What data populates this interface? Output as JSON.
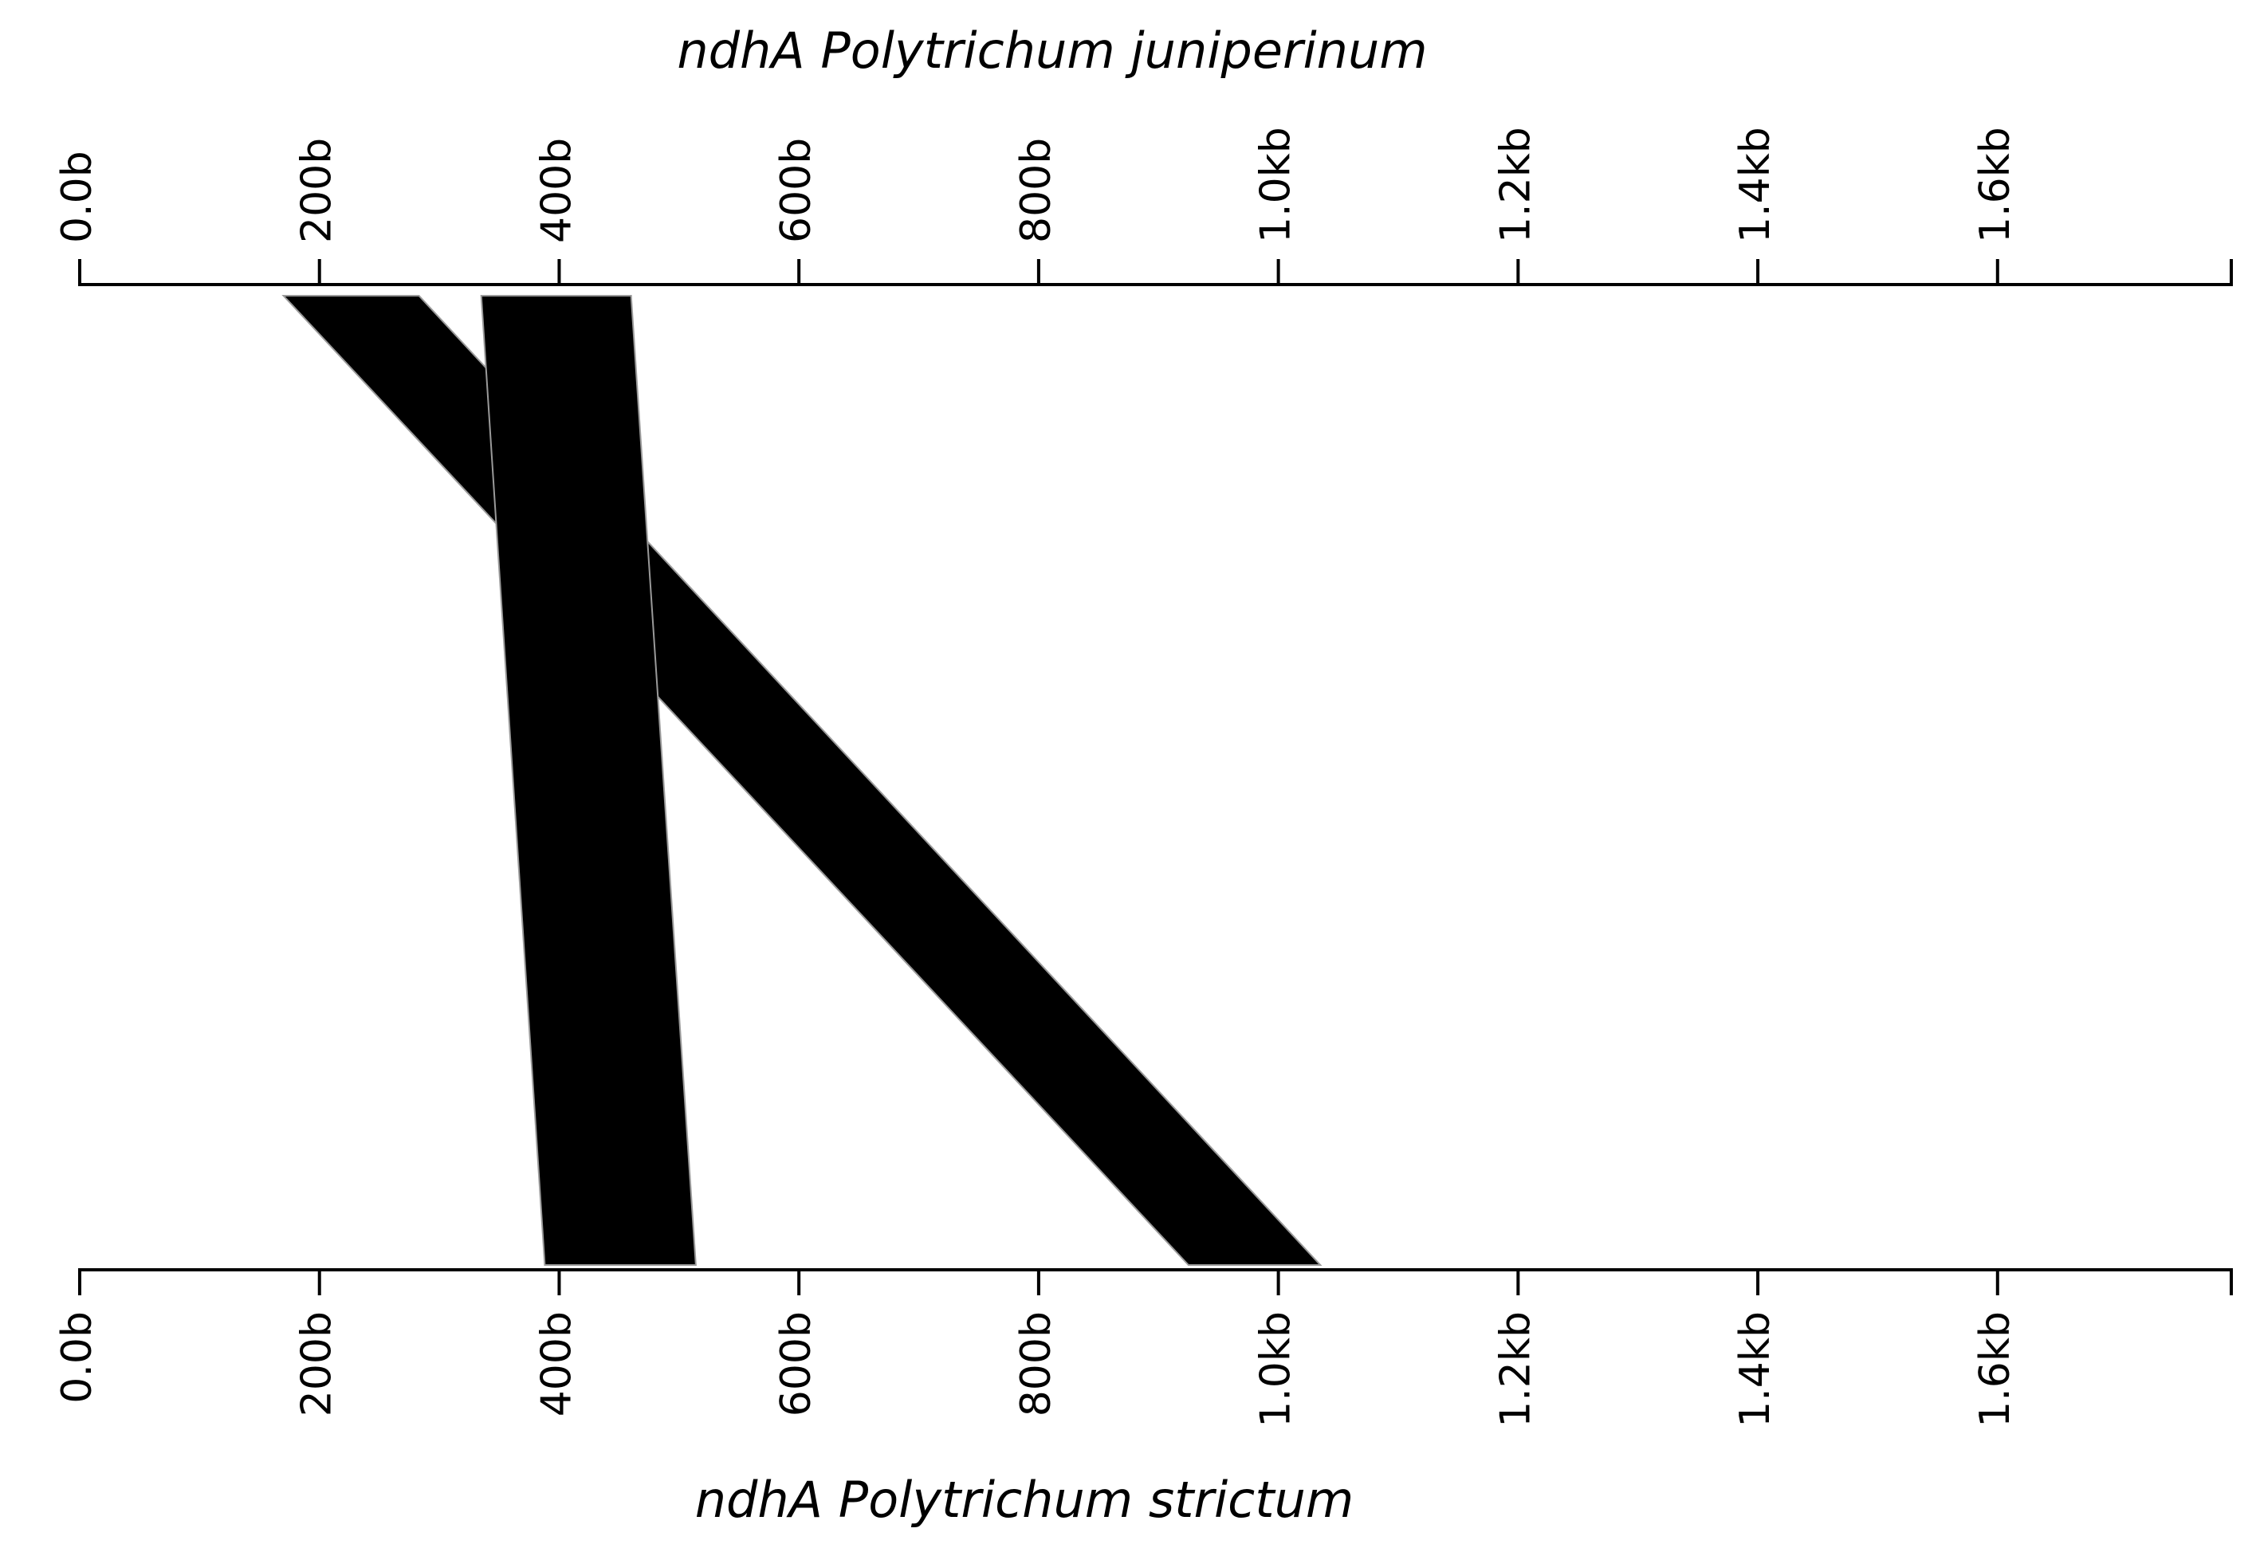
{
  "chart_data": {
    "type": "comparison",
    "color": "#000000",
    "tracks": [
      {
        "name": "ndhA Polytrichum juniperinum",
        "xlim": [
          0,
          1795
        ],
        "xticks": [
          {
            "value": 0,
            "label": "0.0b"
          },
          {
            "value": 200,
            "label": "200b"
          },
          {
            "value": 400,
            "label": "400b"
          },
          {
            "value": 600,
            "label": "600b"
          },
          {
            "value": 800,
            "label": "800b"
          },
          {
            "value": 1000,
            "label": "1.0kb"
          },
          {
            "value": 1200,
            "label": "1.2kb"
          },
          {
            "value": 1400,
            "label": "1.4kb"
          },
          {
            "value": 1600,
            "label": "1.6kb"
          }
        ]
      },
      {
        "name": "ndhA Polytrichum strictum",
        "xlim": [
          0,
          1795
        ],
        "xticks": [
          {
            "value": 0,
            "label": "0.0b"
          },
          {
            "value": 200,
            "label": "200b"
          },
          {
            "value": 400,
            "label": "400b"
          },
          {
            "value": 600,
            "label": "600b"
          },
          {
            "value": 800,
            "label": "800b"
          },
          {
            "value": 1000,
            "label": "1.0kb"
          },
          {
            "value": 1200,
            "label": "1.2kb"
          },
          {
            "value": 1400,
            "label": "1.4kb"
          },
          {
            "value": 1600,
            "label": "1.6kb"
          }
        ]
      }
    ],
    "segments": [
      {
        "top": [
          170,
          283
        ],
        "bottom": [
          925,
          1035
        ]
      },
      {
        "top": [
          335,
          460
        ],
        "bottom": [
          388,
          514
        ]
      }
    ]
  }
}
